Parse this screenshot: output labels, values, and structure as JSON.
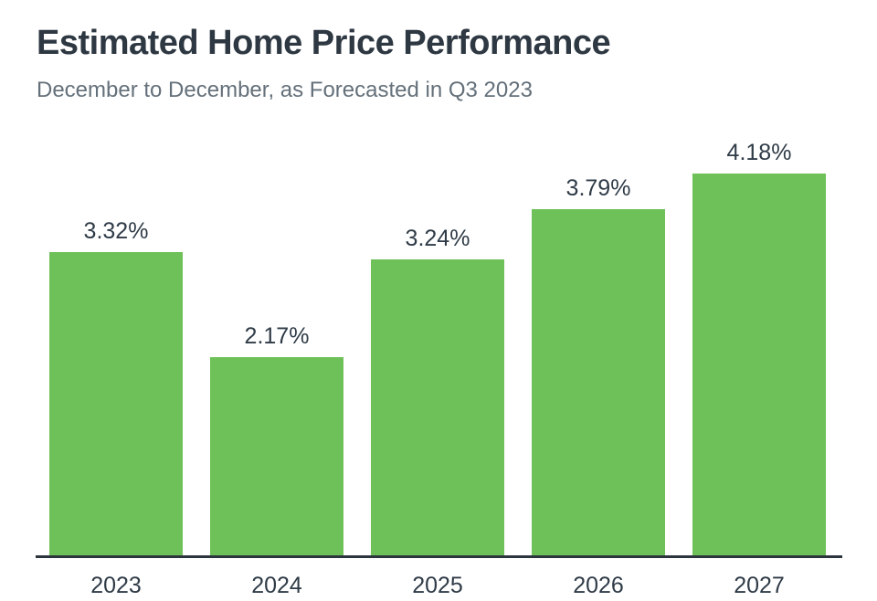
{
  "chart_data": {
    "type": "bar",
    "title": "Estimated Home Price Performance",
    "subtitle": "December to December, as Forecasted in Q3 2023",
    "categories": [
      "2023",
      "2024",
      "2025",
      "2026",
      "2027"
    ],
    "values": [
      3.32,
      2.17,
      3.24,
      3.79,
      4.18
    ],
    "value_labels": [
      "3.32%",
      "2.17%",
      "3.24%",
      "3.79%",
      "4.18%"
    ],
    "xlabel": "",
    "ylabel": "",
    "ylim": [
      0,
      4.6
    ],
    "grid": false,
    "legend": "none",
    "colors": {
      "bar": "#6ec158",
      "axis_line": "#2c353d",
      "title": "#2e3842",
      "subtitle": "#64707a",
      "label": "#2f3b47",
      "background": "#ffffff"
    }
  }
}
